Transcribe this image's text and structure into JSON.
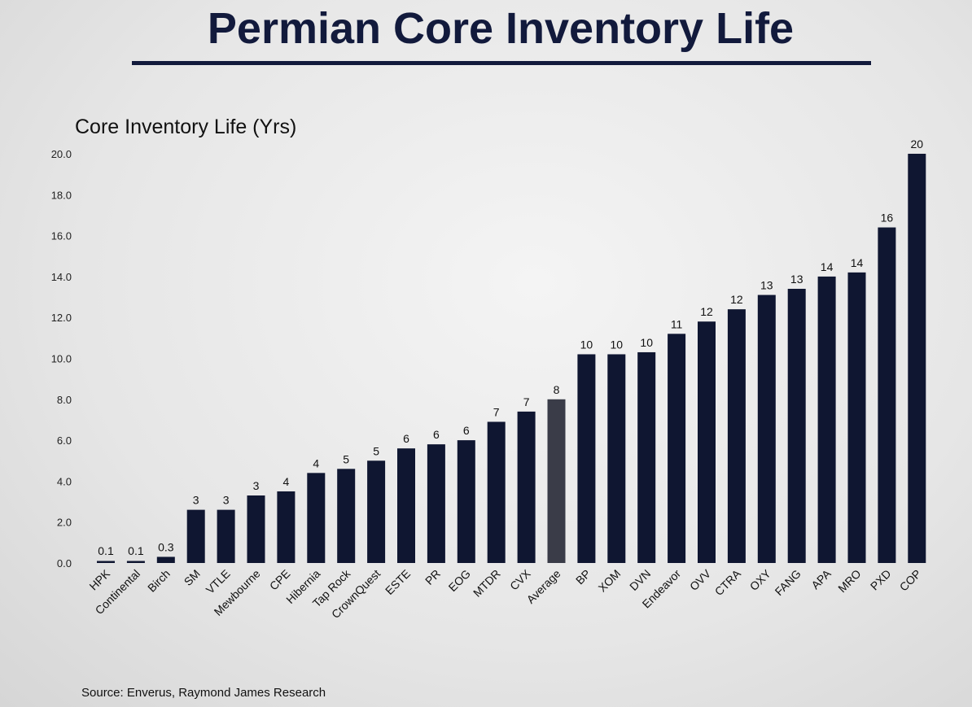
{
  "chart_data": {
    "type": "bar",
    "title": "Permian Core Inventory Life",
    "ylabel": "Core Inventory Life (Yrs)",
    "xlabel": "",
    "ylim": [
      0,
      20
    ],
    "yticks": [
      "0.0",
      "2.0",
      "4.0",
      "6.0",
      "8.0",
      "10.0",
      "12.0",
      "14.0",
      "16.0",
      "18.0",
      "20.0"
    ],
    "grid": false,
    "categories": [
      "HPK",
      "Continental",
      "Birch",
      "SM",
      "VTLE",
      "Mewbourne",
      "CPE",
      "Hibernia",
      "Tap Rock",
      "CrownQuest",
      "ESTE",
      "PR",
      "EOG",
      "MTDR",
      "CVX",
      "Average",
      "BP",
      "XOM",
      "DVN",
      "Endeavor",
      "OVV",
      "CTRA",
      "OXY",
      "FANG",
      "APA",
      "MRO",
      "PXD",
      "COP"
    ],
    "values": [
      0.1,
      0.1,
      0.3,
      2.6,
      2.6,
      3.3,
      3.5,
      4.4,
      4.6,
      5.0,
      5.6,
      5.8,
      6.0,
      6.9,
      7.4,
      8.0,
      10.2,
      10.2,
      10.3,
      11.2,
      11.8,
      12.4,
      13.1,
      13.4,
      14.0,
      14.2,
      16.4,
      20.0
    ],
    "data_labels": [
      "0.1",
      "0.1",
      "0.3",
      "3",
      "3",
      "3",
      "4",
      "4",
      "5",
      "5",
      "6",
      "6",
      "6",
      "7",
      "7",
      "8",
      "10",
      "10",
      "10",
      "11",
      "12",
      "12",
      "13",
      "13",
      "14",
      "14",
      "16",
      "20"
    ],
    "highlight_category": "Average",
    "colors": {
      "bar": "#0f1631",
      "average_bar": "#3a3c48"
    },
    "source": "Source: Enverus, Raymond James Research"
  }
}
